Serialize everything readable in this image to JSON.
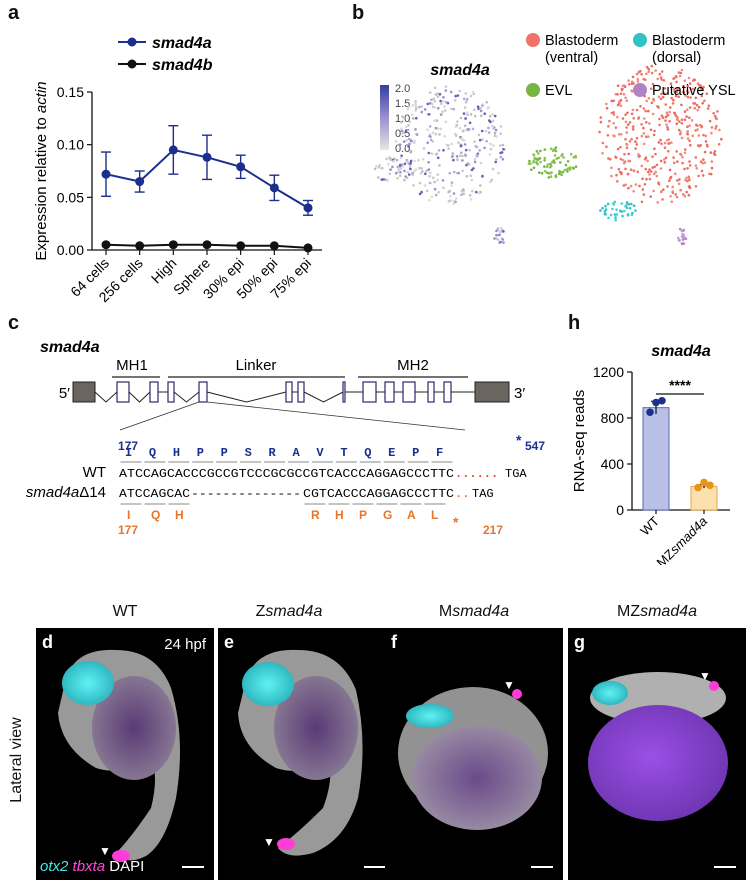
{
  "panel_labels": {
    "a": "a",
    "b": "b",
    "c": "c",
    "h": "h",
    "d": "d",
    "e": "e",
    "f": "f",
    "g": "g"
  },
  "chart_data": [
    {
      "type": "line",
      "panel": "a",
      "categories": [
        "64 cells",
        "256 cells",
        "High",
        "Sphere",
        "30% epi",
        "50% epi",
        "75% epi"
      ],
      "ylabel_prefix": "Expression relative to ",
      "ylabel_italic": "actin",
      "ylim": [
        0,
        0.15
      ],
      "yticks": [
        "0.00",
        "0.05",
        "0.10",
        "0.15"
      ],
      "grid": false,
      "legend": "top-right",
      "series": [
        {
          "name": "smad4a",
          "color": "#1c2f8f",
          "values": [
            0.072,
            0.065,
            0.095,
            0.088,
            0.079,
            0.059,
            0.04
          ],
          "err": [
            0.021,
            0.01,
            0.023,
            0.021,
            0.011,
            0.012,
            0.007
          ]
        },
        {
          "name": "smad4b",
          "color": "#111111",
          "values": [
            0.005,
            0.004,
            0.005,
            0.005,
            0.004,
            0.004,
            0.002
          ],
          "err": [
            0.001,
            0.001,
            0.001,
            0.001,
            0.001,
            0.001,
            0.001
          ]
        }
      ]
    },
    {
      "type": "bar",
      "panel": "h",
      "title": "smad4a",
      "ylabel": "RNA-seq reads",
      "ylim": [
        0,
        1200
      ],
      "yticks": [
        "0",
        "400",
        "800",
        "1200"
      ],
      "categories": [
        "WT",
        "MZsmad4a"
      ],
      "category_prefix": [
        "WT",
        "MZ"
      ],
      "category_italic": [
        "",
        "smad4a"
      ],
      "values": [
        890,
        205
      ],
      "err": [
        55,
        15
      ],
      "points": [
        [
          850,
          900,
          950
        ],
        [
          195,
          205,
          215
        ]
      ],
      "colors": [
        "#b8c0e6",
        "#fbe0b0"
      ],
      "edge_colors": [
        "#5a6bbf",
        "#e8a545"
      ],
      "point_colors": [
        "#1c2f8f",
        "#e8941a"
      ],
      "significance": "****"
    }
  ],
  "umap": {
    "title": "smad4a",
    "colorbar_ticks": [
      "2.0",
      "1.5",
      "1.0",
      "0.5",
      "0.0"
    ],
    "legend": [
      {
        "label": "Blastoderm (ventral)",
        "color": "#f07367"
      },
      {
        "label": "Blastoderm (dorsal)",
        "color": "#2fc3c6"
      },
      {
        "label": "EVL",
        "color": "#78b442"
      },
      {
        "label": "Putative YSL",
        "color": "#b082c2"
      }
    ]
  },
  "gene": {
    "title": "smad4a",
    "five": "5′",
    "three": "3′",
    "domains": [
      "MH1",
      "Linker",
      "MH2"
    ],
    "wt_start": "177",
    "wt_end": "547",
    "wt_aa": [
      "I",
      "Q",
      "H",
      "P",
      "P",
      "S",
      "R",
      "A",
      "V",
      "T",
      "Q",
      "E",
      "P",
      "F"
    ],
    "wt_stop": "*",
    "wt_label": "WT",
    "wt_seq": "ATCCAGCACCCGCCGTCCCGCGCCGTCACCCAGGAGCCCTTC",
    "wt_dots": "......",
    "wt_tga": "TGA",
    "mut_label_prefix": "smad4a",
    "mut_label_suffix": "Δ14",
    "mut_seq_a": "ATCCAGCAC",
    "mut_dashes": "--------------",
    "mut_seq_b": "CGTCACCCAGGAGCCCTTC",
    "mut_dots": "..",
    "mut_tag": "TAG",
    "mut_start": "177",
    "mut_end": "217",
    "mut_aa": [
      "I",
      "Q",
      "H",
      "R",
      "H",
      "P",
      "G",
      "A",
      "L"
    ],
    "mut_stop": "*"
  },
  "embryos": {
    "titles": [
      {
        "prefix": "WT",
        "italic": ""
      },
      {
        "prefix": "Z",
        "italic": "smad4a"
      },
      {
        "prefix": "M",
        "italic": "smad4a"
      },
      {
        "prefix": "MZ",
        "italic": "smad4a"
      }
    ],
    "stage": "24 hpf",
    "view": "Lateral view",
    "stain_otx2": "otx2",
    "stain_tbxta": "tbxta",
    "stain_dapi": "DAPI"
  }
}
